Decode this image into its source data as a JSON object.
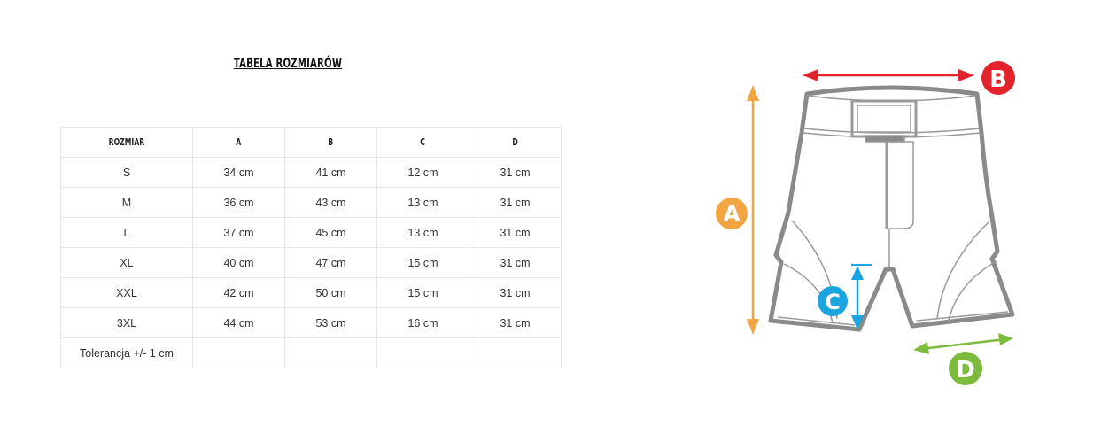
{
  "title": "TABELA ROZMIARÓW",
  "table": {
    "headers": [
      "ROZMIAR",
      "A",
      "B",
      "C",
      "D"
    ],
    "rows": [
      [
        "S",
        "34 cm",
        "41 cm",
        "12 cm",
        "31 cm"
      ],
      [
        "M",
        "36 cm",
        "43 cm",
        "13 cm",
        "31 cm"
      ],
      [
        "L",
        "37 cm",
        "45 cm",
        "13 cm",
        "31 cm"
      ],
      [
        "XL",
        "40 cm",
        "47 cm",
        "15 cm",
        "31 cm"
      ],
      [
        "XXL",
        "42 cm",
        "50 cm",
        "15 cm",
        "31 cm"
      ],
      [
        "3XL",
        "44 cm",
        "53 cm",
        "16 cm",
        "31 cm"
      ],
      [
        "Tolerancja +/- 1 cm",
        "",
        "",
        "",
        ""
      ]
    ]
  },
  "diagram": {
    "labels": {
      "a": "A",
      "b": "B",
      "c": "C",
      "d": "D"
    },
    "colors": {
      "a": "#f2a641",
      "b": "#e3232b",
      "c": "#1ba4e0",
      "d": "#7dbb3c",
      "outline": "#8a8a8a"
    }
  }
}
